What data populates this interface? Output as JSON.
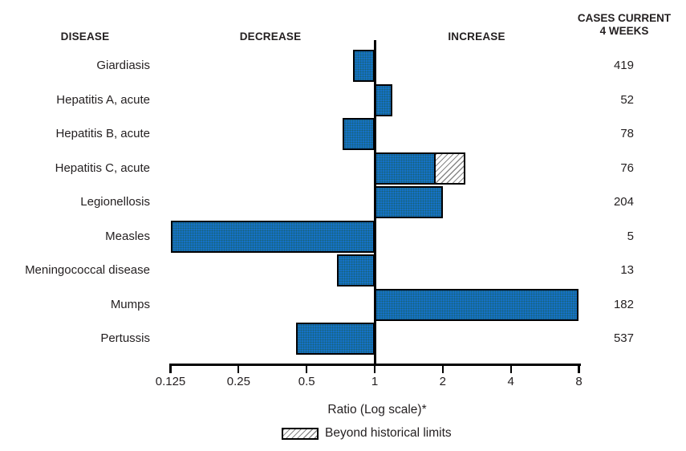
{
  "header": {
    "disease": "DISEASE",
    "decrease": "DECREASE",
    "increase": "INCREASE",
    "cases_line1": "CASES CURRENT",
    "cases_line2": "4 WEEKS"
  },
  "chart_data": {
    "type": "bar",
    "orientation": "horizontal-diverging",
    "x_scale": "log2",
    "baseline": 1,
    "xlim": [
      0.125,
      8
    ],
    "xlabel": "Ratio (Log scale)*",
    "x_ticks": [
      {
        "value": 0.125,
        "label": "0.125"
      },
      {
        "value": 0.25,
        "label": "0.25"
      },
      {
        "value": 0.5,
        "label": "0.5"
      },
      {
        "value": 1,
        "label": "1"
      },
      {
        "value": 2,
        "label": "2"
      },
      {
        "value": 4,
        "label": "4"
      },
      {
        "value": 8,
        "label": "8"
      }
    ],
    "rows": [
      {
        "disease": "Giardiasis",
        "ratio": 0.8,
        "cases_current_4_weeks": 419
      },
      {
        "disease": "Hepatitis A, acute",
        "ratio": 1.2,
        "cases_current_4_weeks": 52
      },
      {
        "disease": "Hepatitis B, acute",
        "ratio": 0.72,
        "cases_current_4_weeks": 78
      },
      {
        "disease": "Hepatitis C, acute",
        "ratio": 1.86,
        "beyond_limit_ratio": 2.52,
        "cases_current_4_weeks": 76
      },
      {
        "disease": "Legionellosis",
        "ratio": 2.0,
        "cases_current_4_weeks": 204
      },
      {
        "disease": "Measles",
        "ratio": 0.125,
        "cases_current_4_weeks": 5
      },
      {
        "disease": "Meningococcal disease",
        "ratio": 0.68,
        "cases_current_4_weeks": 13
      },
      {
        "disease": "Mumps",
        "ratio": 8.0,
        "cases_current_4_weeks": 182
      },
      {
        "disease": "Pertussis",
        "ratio": 0.45,
        "cases_current_4_weeks": 537
      }
    ],
    "legend": [
      {
        "label": "Beyond historical limits",
        "style": "hatched"
      }
    ],
    "colors": {
      "bar_fill": "#1571c6",
      "bar_stipple": "#1e5537",
      "outline": "#000000",
      "text": "#231f20",
      "hatch_line": "#878787"
    }
  }
}
